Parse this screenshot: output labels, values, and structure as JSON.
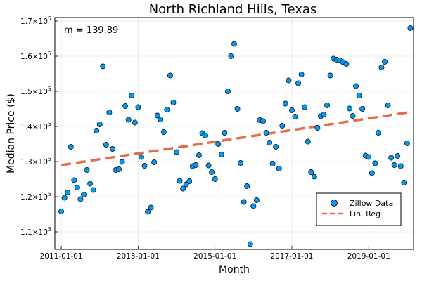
{
  "chart_data": {
    "type": "scatter",
    "title": "North Richland Hills, Texas",
    "xlabel": "Month",
    "ylabel": "Median Price ($)",
    "annotation": "m = 139.89",
    "x_ticks": [
      "2011-01-01",
      "2013-01-01",
      "2015-01-01",
      "2017-01-01",
      "2019-01-01"
    ],
    "y_ticks": [
      {
        "mantissa": "1.1",
        "exp": "5",
        "value": 110000
      },
      {
        "mantissa": "1.2",
        "exp": "5",
        "value": 120000
      },
      {
        "mantissa": "1.3",
        "exp": "5",
        "value": 130000
      },
      {
        "mantissa": "1.4",
        "exp": "5",
        "value": 140000
      },
      {
        "mantissa": "1.5",
        "exp": "5",
        "value": 150000
      },
      {
        "mantissa": "1.6",
        "exp": "5",
        "value": 160000
      },
      {
        "mantissa": "1.7",
        "exp": "5",
        "value": 170000
      }
    ],
    "ylim": [
      105000,
      171000
    ],
    "xlim": [
      "2010-11-01",
      "2020-03-01"
    ],
    "grid": true,
    "legend_position": "bottom-right",
    "colors": {
      "scatter": "#009AFA",
      "regression": "#E26F46"
    },
    "series": [
      {
        "name": "Zillow Data",
        "style": "scatter",
        "points": [
          [
            "2011-01",
            115800
          ],
          [
            "2011-02",
            119700
          ],
          [
            "2011-03",
            121200
          ],
          [
            "2011-04",
            134200
          ],
          [
            "2011-05",
            124700
          ],
          [
            "2011-06",
            122600
          ],
          [
            "2011-07",
            119300
          ],
          [
            "2011-08",
            120600
          ],
          [
            "2011-09",
            127600
          ],
          [
            "2011-10",
            123700
          ],
          [
            "2011-11",
            121900
          ],
          [
            "2011-12",
            138800
          ],
          [
            "2012-01",
            140600
          ],
          [
            "2012-02",
            157100
          ],
          [
            "2012-03",
            134800
          ],
          [
            "2012-04",
            144000
          ],
          [
            "2012-05",
            133600
          ],
          [
            "2012-06",
            127600
          ],
          [
            "2012-07",
            127800
          ],
          [
            "2012-08",
            129900
          ],
          [
            "2012-09",
            145800
          ],
          [
            "2012-10",
            141900
          ],
          [
            "2012-11",
            148800
          ],
          [
            "2012-12",
            141100
          ],
          [
            "2013-01",
            145500
          ],
          [
            "2013-02",
            131300
          ],
          [
            "2013-03",
            128800
          ],
          [
            "2013-04",
            115700
          ],
          [
            "2013-05",
            116900
          ],
          [
            "2013-06",
            129800
          ],
          [
            "2013-07",
            143100
          ],
          [
            "2013-08",
            142000
          ],
          [
            "2013-09",
            138400
          ],
          [
            "2013-10",
            144800
          ],
          [
            "2013-11",
            154500
          ],
          [
            "2013-12",
            146800
          ],
          [
            "2014-01",
            132700
          ],
          [
            "2014-02",
            124500
          ],
          [
            "2014-03",
            122300
          ],
          [
            "2014-04",
            123500
          ],
          [
            "2014-05",
            124400
          ],
          [
            "2014-06",
            128700
          ],
          [
            "2014-07",
            129000
          ],
          [
            "2014-08",
            131800
          ],
          [
            "2014-09",
            138100
          ],
          [
            "2014-10",
            137400
          ],
          [
            "2014-11",
            128900
          ],
          [
            "2014-12",
            127000
          ],
          [
            "2015-01",
            125000
          ],
          [
            "2015-02",
            135000
          ],
          [
            "2015-03",
            132000
          ],
          [
            "2015-04",
            138200
          ],
          [
            "2015-05",
            150000
          ],
          [
            "2015-06",
            160000
          ],
          [
            "2015-07",
            163500
          ],
          [
            "2015-08",
            145000
          ],
          [
            "2015-09",
            129600
          ],
          [
            "2015-10",
            118500
          ],
          [
            "2015-11",
            123000
          ],
          [
            "2015-12",
            106500
          ],
          [
            "2016-01",
            117300
          ],
          [
            "2016-02",
            119000
          ],
          [
            "2016-03",
            141800
          ],
          [
            "2016-04",
            141500
          ],
          [
            "2016-05",
            138200
          ],
          [
            "2016-06",
            135400
          ],
          [
            "2016-07",
            129400
          ],
          [
            "2016-08",
            134200
          ],
          [
            "2016-09",
            128000
          ],
          [
            "2016-10",
            140200
          ],
          [
            "2016-11",
            146500
          ],
          [
            "2016-12",
            153100
          ],
          [
            "2017-01",
            144600
          ],
          [
            "2017-02",
            142800
          ],
          [
            "2017-03",
            152300
          ],
          [
            "2017-04",
            154800
          ],
          [
            "2017-05",
            145500
          ],
          [
            "2017-06",
            135700
          ],
          [
            "2017-07",
            127000
          ],
          [
            "2017-08",
            125700
          ],
          [
            "2017-09",
            139600
          ],
          [
            "2017-10",
            142900
          ],
          [
            "2017-11",
            143400
          ],
          [
            "2017-12",
            146000
          ],
          [
            "2018-01",
            154500
          ],
          [
            "2018-02",
            159300
          ],
          [
            "2018-03",
            159000
          ],
          [
            "2018-04",
            158800
          ],
          [
            "2018-05",
            158300
          ],
          [
            "2018-06",
            157800
          ],
          [
            "2018-07",
            145100
          ],
          [
            "2018-08",
            143000
          ],
          [
            "2018-09",
            151500
          ],
          [
            "2018-10",
            148800
          ],
          [
            "2018-11",
            145000
          ],
          [
            "2018-12",
            131700
          ],
          [
            "2019-01",
            131300
          ],
          [
            "2019-02",
            126700
          ],
          [
            "2019-03",
            129500
          ],
          [
            "2019-04",
            138200
          ],
          [
            "2019-05",
            156800
          ],
          [
            "2019-06",
            158400
          ],
          [
            "2019-07",
            146000
          ],
          [
            "2019-08",
            131100
          ],
          [
            "2019-09",
            129000
          ],
          [
            "2019-10",
            131600
          ],
          [
            "2019-11",
            128700
          ],
          [
            "2019-12",
            124000
          ],
          [
            "2020-01",
            135200
          ],
          [
            "2020-02",
            168000
          ]
        ]
      },
      {
        "name": "Lin. Reg",
        "style": "dashed-line",
        "points": [
          [
            "2011-01",
            129000
          ],
          [
            "2020-02",
            144100
          ]
        ]
      }
    ]
  }
}
